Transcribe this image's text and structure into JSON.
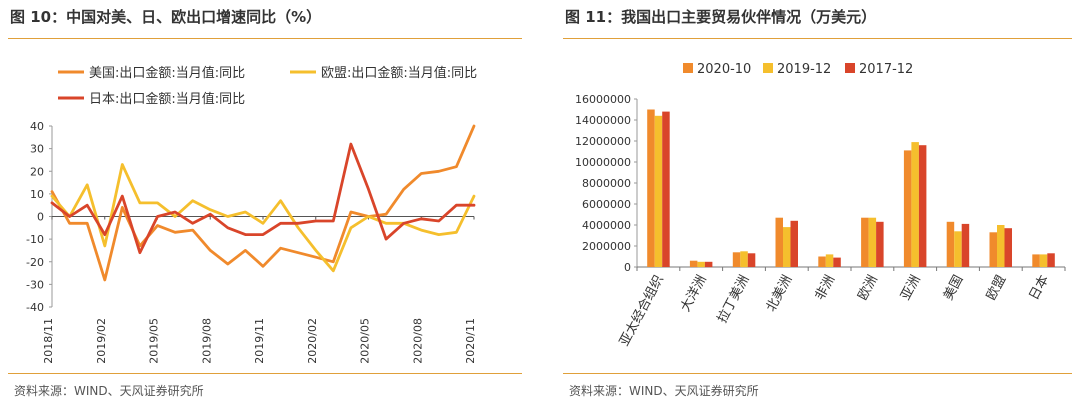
{
  "left": {
    "title": "图 10：中国对美、日、欧出口增速同比（%）",
    "source": "资料来源：WIND、天风证券研究所",
    "chart_data": {
      "type": "line",
      "title": "中国对美、日、欧出口增速同比（%）",
      "ylim": [
        -40,
        40
      ],
      "yticks": [
        -40,
        -30,
        -20,
        -10,
        0,
        10,
        20,
        30,
        40
      ],
      "x_tick_labels": [
        "2018/11",
        "2019/02",
        "2019/05",
        "2019/08",
        "2019/11",
        "2020/02",
        "2020/05",
        "2020/08",
        "2020/11"
      ],
      "x_tick_index": [
        0,
        3,
        6,
        9,
        12,
        15,
        18,
        21,
        24
      ],
      "n_points": 25,
      "series": [
        {
          "name": "美国:出口金额:当月值:同比",
          "color": "#f08a2c",
          "values": [
            11,
            -3,
            -3,
            -28,
            4,
            -13,
            -4,
            -7,
            -6,
            -15,
            -21,
            -15,
            -22,
            -14,
            -16,
            -18,
            -20,
            2,
            0,
            1,
            12,
            19,
            20,
            22,
            40
          ]
        },
        {
          "name": "欧盟:出口金额:当月值:同比",
          "color": "#f5bf2d",
          "values": [
            9,
            0,
            14,
            -13,
            23,
            6,
            6,
            0,
            7,
            3,
            0,
            2,
            -3,
            7,
            -5,
            -15,
            -24,
            -5,
            0,
            -3,
            -3,
            -6,
            -8,
            -7,
            9
          ]
        },
        {
          "name": "日本:出口金额:当月值:同比",
          "color": "#d9452a",
          "values": [
            6,
            0,
            5,
            -8,
            9,
            -16,
            0,
            2,
            -3,
            1,
            -5,
            -8,
            -8,
            -3,
            -3,
            -2,
            -2,
            32,
            12,
            -10,
            -3,
            -1,
            -2,
            5,
            5
          ]
        }
      ]
    }
  },
  "right": {
    "title": "图 11：我国出口主要贸易伙伴情况（万美元）",
    "source": "资料来源：WIND、天风证券研究所",
    "chart_data": {
      "type": "bar",
      "title": "我国出口主要贸易伙伴情况（万美元）",
      "ylim": [
        0,
        16000000
      ],
      "yticks": [
        0,
        2000000,
        4000000,
        6000000,
        8000000,
        10000000,
        12000000,
        14000000,
        16000000
      ],
      "ytick_labels": [
        "0",
        "2000000",
        "4000000",
        "6000000",
        "8000000",
        "10000000",
        "12000000",
        "14000000",
        "16000000"
      ],
      "categories": [
        "亚太经合组织",
        "大洋洲",
        "拉丁美洲",
        "北美洲",
        "非洲",
        "欧洲",
        "亚洲",
        "美国",
        "欧盟",
        "日本"
      ],
      "series": [
        {
          "name": "2020-10",
          "color": "#f08a2c",
          "values": [
            15000000,
            600000,
            1400000,
            4700000,
            1000000,
            4700000,
            11100000,
            4300000,
            3300000,
            1200000
          ]
        },
        {
          "name": "2019-12",
          "color": "#f5bf2d",
          "values": [
            14400000,
            500000,
            1500000,
            3800000,
            1200000,
            4700000,
            11900000,
            3400000,
            4000000,
            1200000
          ]
        },
        {
          "name": "2017-12",
          "color": "#d9452a",
          "values": [
            14800000,
            500000,
            1300000,
            4400000,
            900000,
            4300000,
            11600000,
            4100000,
            3700000,
            1300000
          ]
        }
      ]
    }
  }
}
